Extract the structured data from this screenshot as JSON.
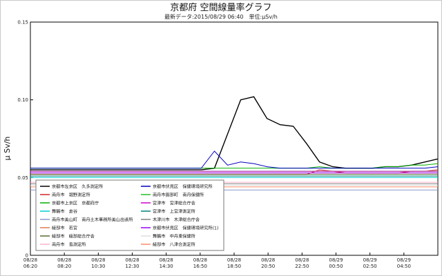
{
  "chart_data": {
    "type": "line",
    "title": "京都府 空間線量率グラフ",
    "subtitle": "最新データ:2015/08/29 06:40　単位:μSv/h",
    "ylabel": "μ Sv/h",
    "ylim": [
      0,
      0.15
    ],
    "yticks": [
      "0",
      "0.05",
      "0.10",
      "0.15"
    ],
    "xlim_hours": [
      0,
      24
    ],
    "xticks": [
      {
        "top": "08/28",
        "bottom": "06:20"
      },
      {
        "top": "08/28",
        "bottom": "08:20"
      },
      {
        "top": "08/28",
        "bottom": "10:30"
      },
      {
        "top": "08/28",
        "bottom": "12:30"
      },
      {
        "top": "08/28",
        "bottom": "14:30"
      },
      {
        "top": "08/28",
        "bottom": "16:50"
      },
      {
        "top": "08/28",
        "bottom": "18:50"
      },
      {
        "top": "08/28",
        "bottom": "20:50"
      },
      {
        "top": "08/28",
        "bottom": "22:50"
      },
      {
        "top": "08/29",
        "bottom": "00:50"
      },
      {
        "top": "08/29",
        "bottom": "02:50"
      },
      {
        "top": "08/29",
        "bottom": "04:50"
      }
    ],
    "grid": false,
    "legend_position": "bottom-left",
    "series": [
      {
        "name": "京都市左京区　久多測定所",
        "color": "#000000",
        "values": [
          0.055,
          0.055,
          0.055,
          0.055,
          0.055,
          0.055,
          0.055,
          0.055,
          0.055,
          0.055,
          0.055,
          0.055,
          0.055,
          0.055,
          0.056,
          0.078,
          0.1,
          0.102,
          0.088,
          0.084,
          0.083,
          0.072,
          0.06,
          0.057,
          0.056,
          0.056,
          0.056,
          0.057,
          0.057,
          0.058,
          0.06,
          0.062
        ]
      },
      {
        "name": "南丹市　堀野測定所",
        "color": "#d62222",
        "values": [
          0.052,
          0.052,
          0.052,
          0.052,
          0.052,
          0.052,
          0.052,
          0.052,
          0.052,
          0.052,
          0.052,
          0.052,
          0.052,
          0.052,
          0.052,
          0.052,
          0.052,
          0.052,
          0.052,
          0.052,
          0.052,
          0.052,
          0.055,
          0.054,
          0.053,
          0.053,
          0.053,
          0.053,
          0.053,
          0.054,
          0.054,
          0.055
        ]
      },
      {
        "name": "京都市上京区　京都府庁",
        "color": "#00b000",
        "values": [
          0.056,
          0.056,
          0.056,
          0.056,
          0.056,
          0.056,
          0.056,
          0.056,
          0.056,
          0.056,
          0.056,
          0.056,
          0.056,
          0.056,
          0.056,
          0.056,
          0.056,
          0.056,
          0.056,
          0.056,
          0.056,
          0.056,
          0.057,
          0.056,
          0.056,
          0.056,
          0.056,
          0.057,
          0.057,
          0.058,
          0.058,
          0.059
        ]
      },
      {
        "name": "舞鶴市　倉谷",
        "color": "#00cdd0",
        "values": [
          0.05,
          0.05,
          0.05,
          0.05,
          0.05,
          0.05,
          0.05,
          0.05,
          0.05,
          0.05,
          0.05,
          0.05,
          0.05,
          0.05,
          0.05,
          0.05,
          0.05,
          0.05,
          0.05,
          0.05,
          0.05,
          0.05,
          0.05,
          0.05,
          0.05,
          0.05,
          0.05,
          0.05,
          0.05,
          0.05,
          0.05,
          0.05
        ]
      },
      {
        "name": "南丹市美山町　南丹土木事務所美山出張所",
        "color": "#8899cc",
        "values": [
          0.042,
          0.042,
          0.042,
          0.042,
          0.042,
          0.042,
          0.042,
          0.042,
          0.042,
          0.042,
          0.042,
          0.042,
          0.042,
          0.042,
          0.042,
          0.042,
          0.042,
          0.042,
          0.042,
          0.042,
          0.042,
          0.042,
          0.042,
          0.042,
          0.042,
          0.042,
          0.042,
          0.042,
          0.042,
          0.042,
          0.042,
          0.042
        ]
      },
      {
        "name": "綾部市　若宮",
        "color": "#e07850",
        "values": [
          0.053,
          0.053,
          0.053,
          0.053,
          0.053,
          0.053,
          0.053,
          0.053,
          0.053,
          0.053,
          0.053,
          0.053,
          0.053,
          0.053,
          0.053,
          0.053,
          0.053,
          0.053,
          0.053,
          0.053,
          0.053,
          0.053,
          0.053,
          0.053,
          0.053,
          0.053,
          0.053,
          0.053,
          0.053,
          0.053,
          0.053,
          0.053
        ]
      },
      {
        "name": "綾部市　綾部総合庁舎",
        "color": "#556b2f",
        "values": [
          0.052,
          0.052,
          0.052,
          0.052,
          0.052,
          0.052,
          0.052,
          0.052,
          0.052,
          0.052,
          0.052,
          0.052,
          0.052,
          0.052,
          0.052,
          0.052,
          0.052,
          0.052,
          0.052,
          0.052,
          0.052,
          0.052,
          0.052,
          0.052,
          0.052,
          0.052,
          0.052,
          0.052,
          0.052,
          0.052,
          0.052,
          0.052
        ]
      },
      {
        "name": "南丹市　島測定所",
        "color": "#ffb0c8",
        "values": [
          0.047,
          0.047,
          0.047,
          0.047,
          0.047,
          0.047,
          0.047,
          0.047,
          0.047,
          0.047,
          0.047,
          0.047,
          0.047,
          0.047,
          0.047,
          0.047,
          0.047,
          0.047,
          0.047,
          0.047,
          0.047,
          0.047,
          0.047,
          0.047,
          0.047,
          0.047,
          0.047,
          0.047,
          0.047,
          0.047,
          0.047,
          0.047
        ]
      },
      {
        "name": "京都市伏見区　保健環境研究所",
        "color": "#0000c0",
        "values": [
          0.056,
          0.056,
          0.056,
          0.056,
          0.056,
          0.056,
          0.056,
          0.056,
          0.056,
          0.056,
          0.056,
          0.056,
          0.056,
          0.056,
          0.067,
          0.058,
          0.06,
          0.059,
          0.057,
          0.056,
          0.056,
          0.056,
          0.056,
          0.056,
          0.056,
          0.056,
          0.056,
          0.056,
          0.056,
          0.056,
          0.056,
          0.057
        ]
      },
      {
        "name": "南丹市園部町　南丹保健所",
        "color": "#20c020",
        "values": [
          0.054,
          0.054,
          0.054,
          0.054,
          0.054,
          0.054,
          0.054,
          0.054,
          0.054,
          0.054,
          0.054,
          0.054,
          0.054,
          0.054,
          0.054,
          0.054,
          0.054,
          0.054,
          0.054,
          0.054,
          0.054,
          0.054,
          0.054,
          0.054,
          0.054,
          0.054,
          0.054,
          0.054,
          0.054,
          0.054,
          0.054,
          0.054
        ]
      },
      {
        "name": "宮津市　宮津総合庁舎",
        "color": "#cc00cc",
        "values": [
          0.054,
          0.054,
          0.054,
          0.054,
          0.054,
          0.054,
          0.054,
          0.054,
          0.054,
          0.054,
          0.054,
          0.054,
          0.054,
          0.054,
          0.054,
          0.054,
          0.054,
          0.054,
          0.054,
          0.054,
          0.054,
          0.054,
          0.054,
          0.054,
          0.054,
          0.054,
          0.054,
          0.054,
          0.054,
          0.054,
          0.054,
          0.054
        ]
      },
      {
        "name": "宮津市　上宮津測定所",
        "color": "#008080",
        "values": [
          0.051,
          0.051,
          0.051,
          0.051,
          0.051,
          0.051,
          0.051,
          0.051,
          0.051,
          0.051,
          0.051,
          0.051,
          0.051,
          0.051,
          0.051,
          0.051,
          0.051,
          0.051,
          0.051,
          0.051,
          0.051,
          0.051,
          0.051,
          0.051,
          0.051,
          0.051,
          0.051,
          0.051,
          0.051,
          0.051,
          0.051,
          0.051
        ]
      },
      {
        "name": "木津川市　木津総合庁舎",
        "color": "#808080",
        "values": [
          0.046,
          0.046,
          0.046,
          0.046,
          0.046,
          0.046,
          0.046,
          0.046,
          0.046,
          0.046,
          0.046,
          0.046,
          0.046,
          0.046,
          0.046,
          0.046,
          0.046,
          0.046,
          0.046,
          0.046,
          0.046,
          0.046,
          0.046,
          0.046,
          0.046,
          0.046,
          0.046,
          0.046,
          0.046,
          0.046,
          0.046,
          0.046
        ]
      },
      {
        "name": "京都市伏見区　保健環境研究所(1)",
        "color": "#9900ff",
        "values": [
          0.053,
          0.053,
          0.053,
          0.053,
          0.053,
          0.053,
          0.053,
          0.053,
          0.053,
          0.053,
          0.053,
          0.053,
          0.053,
          0.053,
          0.053,
          0.053,
          0.053,
          0.053,
          0.053,
          0.053,
          0.053,
          0.053,
          0.053,
          0.053,
          0.053,
          0.053,
          0.053,
          0.053,
          0.053,
          0.053,
          0.053,
          0.053
        ]
      },
      {
        "name": "舞鶴市　中丹東保健所",
        "color": "#dddddd",
        "values": [
          0.045,
          0.045,
          0.045,
          0.045,
          0.045,
          0.045,
          0.045,
          0.045,
          0.045,
          0.045,
          0.045,
          0.045,
          0.045,
          0.045,
          0.045,
          0.045,
          0.045,
          0.045,
          0.045,
          0.045,
          0.045,
          0.045,
          0.045,
          0.045,
          0.045,
          0.045,
          0.045,
          0.045,
          0.045,
          0.045,
          0.045,
          0.045
        ]
      },
      {
        "name": "綾部市　八津合測定所",
        "color": "#ff8c69",
        "values": [
          0.044,
          0.044,
          0.044,
          0.044,
          0.044,
          0.044,
          0.044,
          0.044,
          0.044,
          0.044,
          0.044,
          0.044,
          0.044,
          0.044,
          0.044,
          0.044,
          0.044,
          0.044,
          0.044,
          0.044,
          0.044,
          0.044,
          0.044,
          0.044,
          0.044,
          0.044,
          0.044,
          0.044,
          0.044,
          0.044,
          0.044,
          0.044
        ]
      }
    ]
  }
}
